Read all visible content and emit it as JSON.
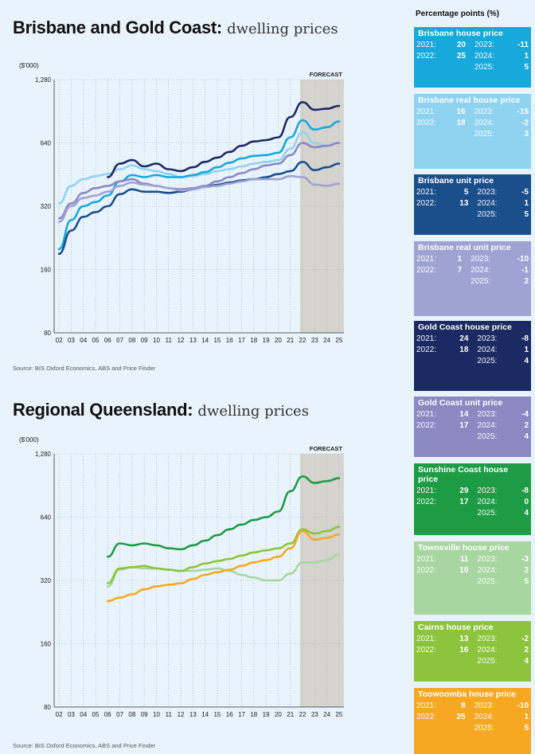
{
  "colors": {
    "bris_house": "#17a8dc",
    "bris_real_house": "#8fd3f1",
    "bris_unit": "#1a4f8c",
    "bris_real_unit": "#9fa3d4",
    "gc_house": "#1c2a63",
    "gc_unit": "#8c88c2",
    "sc_house": "#1e9b45",
    "tsv_house": "#a7d6a0",
    "cairns_house": "#8cc43e",
    "toowoomba_house": "#f7a823",
    "forecast_band": "#d6d4cf"
  },
  "chart_data": [
    {
      "type": "line",
      "title": "Brisbane and Gold Coast:",
      "subtitle": "dwelling prices",
      "ylabel": "($'000)",
      "y_scale": "log",
      "ylim": [
        80,
        1280
      ],
      "yticks": [
        "1,280",
        "640",
        "320",
        "160",
        "80"
      ],
      "ytick_values": [
        1280,
        640,
        320,
        160,
        80
      ],
      "x_start": 2002,
      "x_end": 2025,
      "xtick_labels": [
        "02",
        "03",
        "04",
        "05",
        "06",
        "07",
        "08",
        "09",
        "10",
        "11",
        "12",
        "13",
        "14",
        "15",
        "16",
        "17",
        "18",
        "19",
        "20",
        "21",
        "22",
        "23",
        "24",
        "25"
      ],
      "forecast_label": "FORECAST",
      "forecast_from": 2021.8,
      "source": "Source: BIS Oxford Economics, ABS and Price Finder",
      "series": [
        {
          "name": "Brisbane real house price",
          "color_key": "bris_real_house",
          "x": [
            2002,
            2003,
            2004,
            2005,
            2006,
            2007,
            2008,
            2009,
            2010,
            2011,
            2012,
            2013,
            2014,
            2015,
            2016,
            2017,
            2018,
            2019,
            2020,
            2021,
            2022,
            2023,
            2024,
            2025
          ],
          "values": [
            330,
            400,
            430,
            445,
            455,
            480,
            500,
            480,
            470,
            455,
            440,
            445,
            455,
            470,
            480,
            495,
            510,
            520,
            530,
            600,
            720,
            640,
            620,
            640
          ]
        },
        {
          "name": "Brisbane house price",
          "color_key": "bris_house",
          "x": [
            2002,
            2003,
            2004,
            2005,
            2006,
            2007,
            2008,
            2009,
            2010,
            2011,
            2012,
            2013,
            2014,
            2015,
            2016,
            2017,
            2018,
            2019,
            2020,
            2021,
            2022,
            2023,
            2024,
            2025
          ],
          "values": [
            200,
            275,
            320,
            335,
            360,
            420,
            450,
            440,
            450,
            440,
            440,
            450,
            465,
            490,
            515,
            540,
            555,
            560,
            575,
            680,
            820,
            740,
            760,
            810
          ]
        },
        {
          "name": "Gold Coast house price",
          "color_key": "gc_house",
          "x": [
            2006,
            2007,
            2008,
            2009,
            2010,
            2011,
            2012,
            2013,
            2014,
            2015,
            2016,
            2017,
            2018,
            2019,
            2020,
            2021,
            2022,
            2023,
            2024,
            2025
          ],
          "values": [
            440,
            510,
            530,
            495,
            510,
            480,
            470,
            490,
            520,
            545,
            580,
            620,
            650,
            660,
            680,
            850,
            1000,
            920,
            930,
            960
          ]
        },
        {
          "name": "Gold Coast unit price",
          "color_key": "gc_unit",
          "x": [
            2002,
            2003,
            2004,
            2005,
            2006,
            2007,
            2008,
            2009,
            2010,
            2011,
            2012,
            2013,
            2014,
            2015,
            2016,
            2017,
            2018,
            2019,
            2020,
            2021,
            2022,
            2023,
            2024,
            2025
          ],
          "values": [
            280,
            330,
            370,
            390,
            400,
            420,
            430,
            410,
            400,
            390,
            385,
            390,
            400,
            420,
            440,
            460,
            480,
            500,
            510,
            560,
            640,
            610,
            620,
            640
          ]
        },
        {
          "name": "Brisbane unit price",
          "color_key": "bris_unit",
          "x": [
            2002,
            2003,
            2004,
            2005,
            2006,
            2007,
            2008,
            2009,
            2010,
            2011,
            2012,
            2013,
            2014,
            2015,
            2016,
            2017,
            2018,
            2019,
            2020,
            2021,
            2022,
            2023,
            2024,
            2025
          ],
          "values": [
            190,
            245,
            285,
            300,
            320,
            365,
            385,
            375,
            375,
            370,
            375,
            385,
            395,
            405,
            415,
            425,
            430,
            440,
            455,
            470,
            520,
            475,
            490,
            510
          ]
        },
        {
          "name": "Brisbane real unit price",
          "color_key": "bris_real_unit",
          "x": [
            2002,
            2003,
            2004,
            2005,
            2006,
            2007,
            2008,
            2009,
            2010,
            2011,
            2012,
            2013,
            2014,
            2015,
            2016,
            2017,
            2018,
            2019,
            2020,
            2021,
            2022,
            2023,
            2024,
            2025
          ],
          "values": [
            270,
            320,
            350,
            360,
            375,
            400,
            415,
            405,
            400,
            390,
            380,
            385,
            395,
            400,
            410,
            420,
            430,
            430,
            430,
            445,
            440,
            405,
            400,
            410
          ]
        }
      ]
    },
    {
      "type": "line",
      "title": "Regional Queensland:",
      "subtitle": "dwelling prices",
      "ylabel": "($'000)",
      "y_scale": "log",
      "ylim": [
        80,
        1280
      ],
      "yticks": [
        "1,280",
        "640",
        "320",
        "160",
        "80"
      ],
      "ytick_values": [
        1280,
        640,
        320,
        160,
        80
      ],
      "x_start": 2002,
      "x_end": 2025,
      "xtick_labels": [
        "02",
        "03",
        "04",
        "05",
        "06",
        "07",
        "08",
        "09",
        "10",
        "11",
        "12",
        "13",
        "14",
        "15",
        "16",
        "17",
        "18",
        "19",
        "20",
        "21",
        "22",
        "23",
        "24",
        "25"
      ],
      "forecast_label": "FORECAST",
      "forecast_from": 2021.8,
      "source": "Source: BIS Oxford Economics, ABS and Price Finder",
      "series": [
        {
          "name": "Sunshine Coast house price",
          "color_key": "sc_house",
          "x": [
            2006,
            2007,
            2008,
            2009,
            2010,
            2011,
            2012,
            2013,
            2014,
            2015,
            2016,
            2017,
            2018,
            2019,
            2020,
            2021,
            2022,
            2023,
            2024,
            2025
          ],
          "values": [
            415,
            480,
            470,
            480,
            470,
            455,
            450,
            470,
            495,
            525,
            560,
            590,
            620,
            640,
            680,
            850,
            1000,
            930,
            950,
            980
          ]
        },
        {
          "name": "Townsville house price",
          "color_key": "tsv_house",
          "x": [
            2006,
            2007,
            2008,
            2009,
            2010,
            2011,
            2012,
            2013,
            2014,
            2015,
            2016,
            2017,
            2018,
            2019,
            2020,
            2021,
            2022,
            2023,
            2024,
            2025
          ],
          "values": [
            300,
            360,
            370,
            365,
            365,
            360,
            355,
            355,
            360,
            365,
            355,
            340,
            330,
            320,
            320,
            345,
            390,
            390,
            400,
            425
          ]
        },
        {
          "name": "Cairns house price",
          "color_key": "cairns_house",
          "x": [
            2006,
            2007,
            2008,
            2009,
            2010,
            2011,
            2012,
            2013,
            2014,
            2015,
            2016,
            2017,
            2018,
            2019,
            2020,
            2021,
            2022,
            2023,
            2024,
            2025
          ],
          "values": [
            310,
            365,
            370,
            375,
            365,
            360,
            355,
            370,
            385,
            395,
            405,
            420,
            435,
            445,
            455,
            480,
            560,
            535,
            550,
            575
          ]
        },
        {
          "name": "Toowoomba house price",
          "color_key": "toowoomba_house",
          "x": [
            2006,
            2007,
            2008,
            2009,
            2010,
            2011,
            2012,
            2013,
            2014,
            2015,
            2016,
            2017,
            2018,
            2019,
            2020,
            2021,
            2022,
            2023,
            2024,
            2025
          ],
          "values": [
            255,
            265,
            275,
            290,
            300,
            305,
            310,
            325,
            340,
            350,
            360,
            375,
            390,
            400,
            415,
            455,
            550,
            500,
            510,
            530
          ]
        }
      ]
    }
  ],
  "panel": {
    "title": "Percentage points (%)",
    "cards": [
      {
        "title": "Brisbane house price",
        "color_key": "bris_house",
        "text_dark": false,
        "rows": [
          [
            "2021:",
            "20",
            "2023:",
            "-11"
          ],
          [
            "2022:",
            "25",
            "2024:",
            "1"
          ],
          [
            "",
            "",
            "2025:",
            "5"
          ]
        ]
      },
      {
        "title": "Brisbane real house price",
        "color_key": "bris_real_house",
        "text_dark": false,
        "rows": [
          [
            "2021:",
            "16",
            "2023:",
            "-15"
          ],
          [
            "2022:",
            "18",
            "2024:",
            "-2"
          ],
          [
            "",
            "",
            "2025:",
            "3"
          ]
        ]
      },
      {
        "title": "Brisbane unit price",
        "color_key": "bris_unit",
        "text_dark": false,
        "rows": [
          [
            "2021:",
            "5",
            "2023:",
            "-5"
          ],
          [
            "2022:",
            "13",
            "2024:",
            "1"
          ],
          [
            "",
            "",
            "2025:",
            "5"
          ]
        ]
      },
      {
        "title": "Brisbane real unit price",
        "color_key": "bris_real_unit",
        "text_dark": false,
        "rows": [
          [
            "2021:",
            "1",
            "2023:",
            "-10"
          ],
          [
            "2022:",
            "7",
            "2024:",
            "-1"
          ],
          [
            "",
            "",
            "2025:",
            "2"
          ]
        ]
      },
      {
        "title": "Gold Coast house price",
        "color_key": "gc_house",
        "text_dark": false,
        "rows": [
          [
            "2021:",
            "24",
            "2023:",
            "-8"
          ],
          [
            "2022:",
            "18",
            "2024:",
            "1"
          ],
          [
            "",
            "",
            "2025:",
            "4"
          ]
        ]
      },
      {
        "title": "Gold Coast unit price",
        "color_key": "gc_unit",
        "text_dark": false,
        "rows": [
          [
            "2021:",
            "14",
            "2023:",
            "-4"
          ],
          [
            "2022:",
            "17",
            "2024:",
            "2"
          ],
          [
            "",
            "",
            "2025:",
            "4"
          ]
        ]
      },
      {
        "title": "Sunshine Coast house price",
        "color_key": "sc_house",
        "text_dark": false,
        "rows": [
          [
            "2021:",
            "29",
            "2023:",
            "-8"
          ],
          [
            "2022:",
            "17",
            "2024:",
            "0"
          ],
          [
            "",
            "",
            "2025:",
            "4"
          ]
        ]
      },
      {
        "title": "Townsville house price",
        "color_key": "tsv_house",
        "text_dark": false,
        "rows": [
          [
            "2021:",
            "11",
            "2023:",
            "-3"
          ],
          [
            "2022:",
            "10",
            "2024:",
            "2"
          ],
          [
            "",
            "",
            "2025:",
            "5"
          ]
        ]
      },
      {
        "title": "Cairns house price",
        "color_key": "cairns_house",
        "text_dark": false,
        "rows": [
          [
            "2021:",
            "13",
            "2023:",
            "-2"
          ],
          [
            "2022:",
            "16",
            "2024:",
            "2"
          ],
          [
            "",
            "",
            "2025:",
            "4"
          ]
        ]
      },
      {
        "title": "Toowoomba house price",
        "color_key": "toowoomba_house",
        "text_dark": false,
        "rows": [
          [
            "2021:",
            "8",
            "2023:",
            "-10"
          ],
          [
            "2022:",
            "25",
            "2024:",
            "1"
          ],
          [
            "",
            "",
            "2025:",
            "5"
          ]
        ]
      }
    ]
  }
}
